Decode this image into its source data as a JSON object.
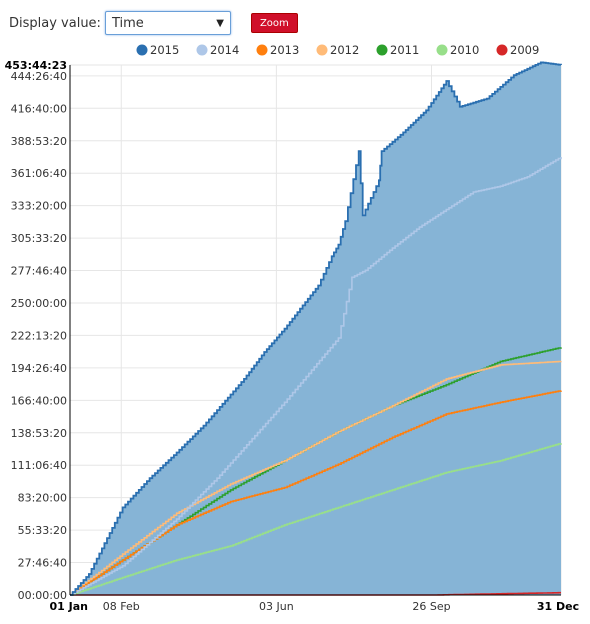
{
  "controls": {
    "display_label": "Display value:",
    "display_value": "Time",
    "zoom_label": "Zoom"
  },
  "chart_data": {
    "type": "area",
    "y_unit": "hours",
    "ylim": [
      0,
      453.7397
    ],
    "yticks": [
      {
        "label": "00:00:00",
        "value": 0
      },
      {
        "label": "27:46:40",
        "value": 27.7778
      },
      {
        "label": "55:33:20",
        "value": 55.5556
      },
      {
        "label": "83:20:00",
        "value": 83.3333
      },
      {
        "label": "111:06:40",
        "value": 111.1111
      },
      {
        "label": "138:53:20",
        "value": 138.8889
      },
      {
        "label": "166:40:00",
        "value": 166.6667
      },
      {
        "label": "194:26:40",
        "value": 194.4444
      },
      {
        "label": "222:13:20",
        "value": 222.2222
      },
      {
        "label": "250:00:00",
        "value": 250
      },
      {
        "label": "277:46:40",
        "value": 277.7778
      },
      {
        "label": "305:33:20",
        "value": 305.5556
      },
      {
        "label": "333:20:00",
        "value": 333.3333
      },
      {
        "label": "361:06:40",
        "value": 361.1111
      },
      {
        "label": "388:53:20",
        "value": 388.8889
      },
      {
        "label": "416:40:00",
        "value": 416.6667
      },
      {
        "label": "444:26:40",
        "value": 444.4444
      },
      {
        "label": "453:44:23",
        "value": 453.7397,
        "bold": true
      }
    ],
    "xlim": [
      1,
      365
    ],
    "xticks": [
      {
        "label": "01 Jan",
        "value": 1,
        "bold": true
      },
      {
        "label": "08 Feb",
        "value": 39
      },
      {
        "label": "03 Jun",
        "value": 154
      },
      {
        "label": "26 Sep",
        "value": 269
      },
      {
        "label": "31 Dec",
        "value": 365,
        "bold": true
      }
    ],
    "grid": true,
    "legend_position": "top",
    "series": [
      {
        "name": "2015",
        "color": "#2a6fb0",
        "fill": "#86b4d6",
        "x": [
          1,
          15,
          40,
          60,
          80,
          100,
          130,
          145,
          160,
          185,
          195,
          200,
          205,
          215,
          218,
          230,
          232,
          248,
          265,
          280,
          290,
          310,
          330,
          350,
          365
        ],
        "y": [
          0,
          18,
          75,
          100,
          122,
          145,
          185,
          208,
          228,
          265,
          290,
          300,
          320,
          380,
          325,
          355,
          380,
          396,
          415,
          440,
          418,
          425,
          445,
          456,
          453.7
        ]
      },
      {
        "name": "2014",
        "color": "#aec7e8",
        "x": [
          1,
          40,
          80,
          110,
          160,
          200,
          210,
          220,
          240,
          260,
          280,
          300,
          320,
          340,
          365
        ],
        "y": [
          0,
          25,
          65,
          100,
          165,
          220,
          272,
          278,
          297,
          315,
          330,
          345,
          350,
          358,
          375
        ]
      },
      {
        "name": "2013",
        "color": "#ff7f0e",
        "x": [
          1,
          40,
          80,
          120,
          160,
          200,
          240,
          280,
          320,
          365
        ],
        "y": [
          0,
          30,
          60,
          80,
          92,
          112,
          135,
          155,
          165,
          175
        ]
      },
      {
        "name": "2012",
        "color": "#ffbb78",
        "x": [
          1,
          40,
          80,
          120,
          160,
          200,
          240,
          280,
          320,
          365
        ],
        "y": [
          0,
          35,
          70,
          95,
          115,
          140,
          162,
          185,
          197,
          200
        ]
      },
      {
        "name": "2011",
        "color": "#2ca02c",
        "x": [
          1,
          40,
          80,
          120,
          160,
          200,
          240,
          280,
          320,
          365
        ],
        "y": [
          0,
          30,
          60,
          90,
          115,
          140,
          162,
          180,
          200,
          212
        ]
      },
      {
        "name": "2010",
        "color": "#98df8a",
        "x": [
          1,
          40,
          80,
          120,
          160,
          200,
          240,
          280,
          320,
          365
        ],
        "y": [
          0,
          15,
          30,
          42,
          60,
          75,
          90,
          105,
          115,
          130
        ]
      },
      {
        "name": "2009",
        "color": "#d62728",
        "x": [
          1,
          270,
          365
        ],
        "y": [
          0,
          0,
          2
        ]
      }
    ]
  }
}
